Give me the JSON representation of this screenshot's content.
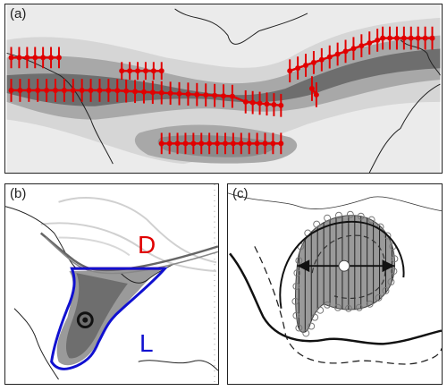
{
  "panels": {
    "a": {
      "label": "(a)"
    },
    "b": {
      "label": "(b)",
      "high_label": "D",
      "low_label": "L"
    },
    "c": {
      "label": "(c)"
    }
  },
  "colors": {
    "marker": "#e00000",
    "blue_outline": "#1010d0",
    "red_line": "#e00000",
    "shade_light": "#d6d6d6",
    "shade_mid": "#a8a8a8",
    "shade_dark": "#6e6e6e",
    "shade_darkest": "#505050"
  }
}
